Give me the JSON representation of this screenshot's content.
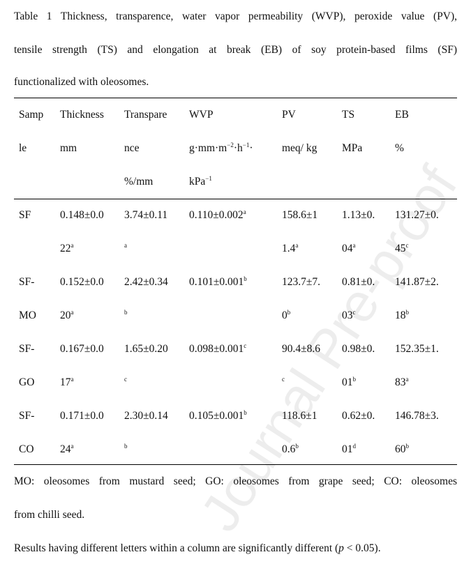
{
  "caption": {
    "lines": [
      "Table 1 Thickness, transparence, water vapor permeability (WVP), peroxide value (PV),",
      "tensile strength (TS) and elongation at break (EB) of soy protein-based films (SF)",
      "functionalized with oleosomes."
    ]
  },
  "table": {
    "headers": [
      [
        "Samp",
        "le",
        ""
      ],
      [
        "Thickness",
        "mm",
        ""
      ],
      [
        "Transpare",
        "nce",
        "%/mm"
      ],
      [
        "WVP",
        "g·mm·m<sup>−2</sup>·h<sup>−1</sup>·",
        "kPa<sup>−1</sup>"
      ],
      [
        "PV",
        "meq/ kg",
        ""
      ],
      [
        "TS",
        "MPa",
        ""
      ],
      [
        "EB",
        "%",
        ""
      ]
    ],
    "rows": [
      {
        "sample": [
          "SF",
          ""
        ],
        "cells": [
          {
            "l1": "0.148±0.0",
            "s1": "",
            "l2": "22",
            "s2": "a"
          },
          {
            "l1": "3.74±0.11",
            "s1": "",
            "l2": "",
            "s2": "a"
          },
          {
            "l1": "0.110±0.002",
            "s1": "a",
            "l2": "",
            "s2": ""
          },
          {
            "l1": "158.6±1",
            "s1": "",
            "l2": "1.4",
            "s2": "a"
          },
          {
            "l1": "1.13±0.",
            "s1": "",
            "l2": "04",
            "s2": "a"
          },
          {
            "l1": "131.27±0.",
            "s1": "",
            "l2": "45",
            "s2": "c"
          }
        ]
      },
      {
        "sample": [
          "SF-",
          "MO"
        ],
        "cells": [
          {
            "l1": "0.152±0.0",
            "s1": "",
            "l2": "20",
            "s2": "a"
          },
          {
            "l1": "2.42±0.34",
            "s1": "",
            "l2": "",
            "s2": "b"
          },
          {
            "l1": "0.101±0.001",
            "s1": "b",
            "l2": "",
            "s2": ""
          },
          {
            "l1": "123.7±7.",
            "s1": "",
            "l2": "0",
            "s2": "b"
          },
          {
            "l1": "0.81±0.",
            "s1": "",
            "l2": "03",
            "s2": "c"
          },
          {
            "l1": "141.87±2.",
            "s1": "",
            "l2": "18",
            "s2": "b"
          }
        ]
      },
      {
        "sample": [
          "SF-",
          "GO"
        ],
        "cells": [
          {
            "l1": "0.167±0.0",
            "s1": "",
            "l2": "17",
            "s2": "a"
          },
          {
            "l1": "1.65±0.20",
            "s1": "",
            "l2": "",
            "s2": "c"
          },
          {
            "l1": "0.098±0.001",
            "s1": "c",
            "l2": "",
            "s2": ""
          },
          {
            "l1": "90.4±8.6",
            "s1": "",
            "l2": "",
            "s2": "c"
          },
          {
            "l1": "0.98±0.",
            "s1": "",
            "l2": "01",
            "s2": "b"
          },
          {
            "l1": "152.35±1.",
            "s1": "",
            "l2": "83",
            "s2": "a"
          }
        ]
      },
      {
        "sample": [
          "SF-",
          "CO"
        ],
        "cells": [
          {
            "l1": "0.171±0.0",
            "s1": "",
            "l2": "24",
            "s2": "a"
          },
          {
            "l1": "2.30±0.14",
            "s1": "",
            "l2": "",
            "s2": "b"
          },
          {
            "l1": "0.105±0.001",
            "s1": "b",
            "l2": "",
            "s2": ""
          },
          {
            "l1": "118.6±1",
            "s1": "",
            "l2": "0.6",
            "s2": "b"
          },
          {
            "l1": "0.62±0.",
            "s1": "",
            "l2": "01",
            "s2": "d"
          },
          {
            "l1": "146.78±3.",
            "s1": "",
            "l2": "60",
            "s2": "b"
          }
        ]
      }
    ]
  },
  "footnotes": {
    "line1": "MO: oleosomes from mustard seed; GO: oleosomes from grape seed; CO: oleosomes",
    "line2": "from chilli seed.",
    "line3_pre": "Results having different letters within a column are significantly different (",
    "line3_p": "p",
    "line3_post": " < 0.05)."
  },
  "watermark": "Journal Pre-proof"
}
